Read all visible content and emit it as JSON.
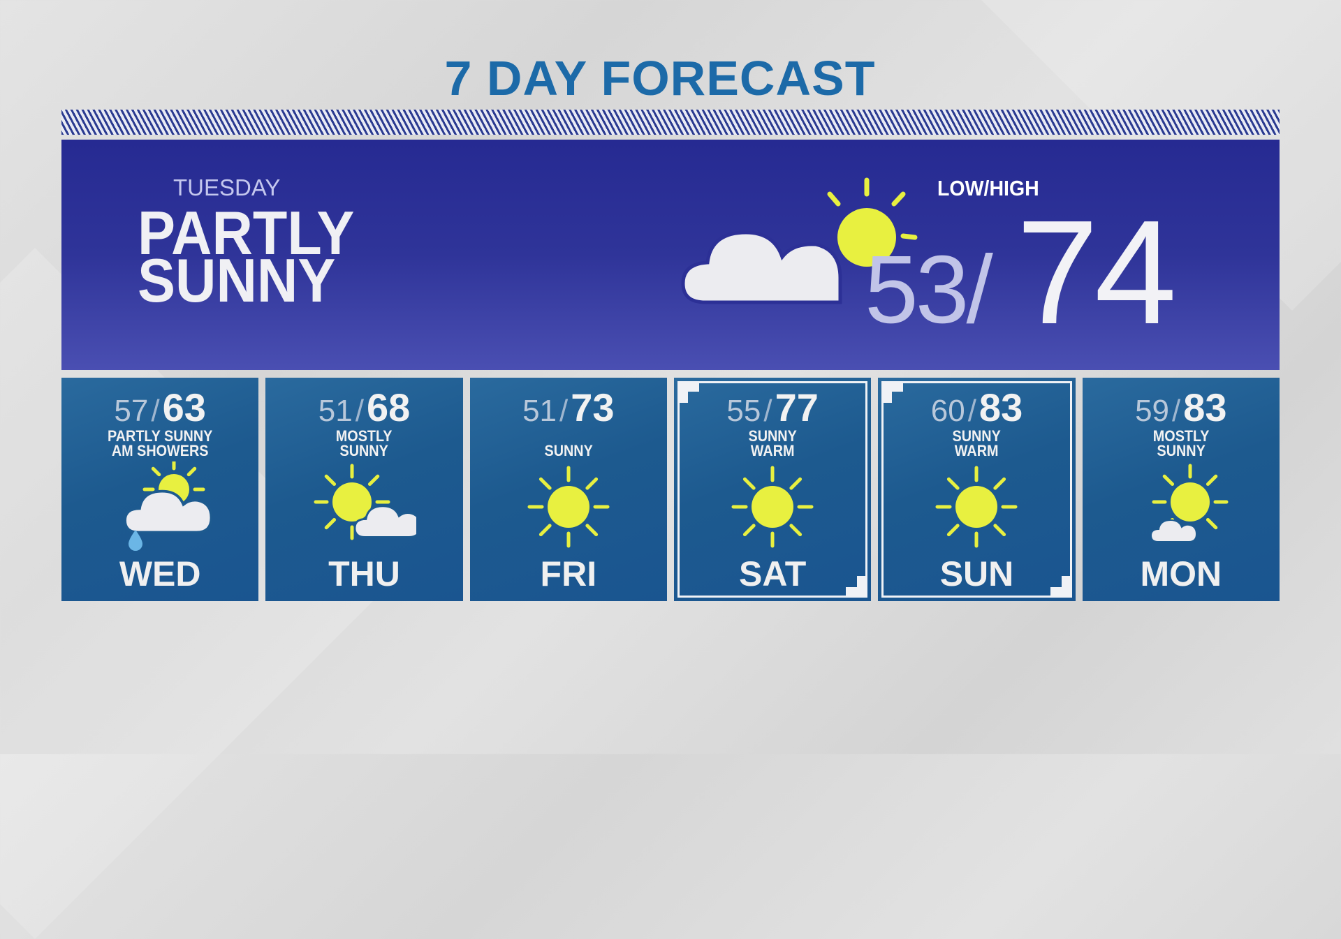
{
  "title": "7 DAY FORECAST",
  "colors": {
    "title": "#1c6aa8",
    "panel": "#262a92",
    "tile": "#1d5a8f",
    "sun": "#e8f040",
    "cloud": "#ececf0",
    "rain": "#6bb6e6"
  },
  "today": {
    "day": "TUESDAY",
    "condition_line1": "PARTLY",
    "condition_line2": "SUNNY",
    "icon": "partly-sunny-icon",
    "low_high_label": "LOW/HIGH",
    "low": "53/",
    "high": "74"
  },
  "days": [
    {
      "day": "WED",
      "low": "57",
      "high": "63",
      "desc1": "PARTLY SUNNY",
      "desc2": "AM SHOWERS",
      "icon": "partly-sunny-showers",
      "highlight": false
    },
    {
      "day": "THU",
      "low": "51",
      "high": "68",
      "desc1": "MOSTLY",
      "desc2": "SUNNY",
      "icon": "mostly-sunny",
      "highlight": false
    },
    {
      "day": "FRI",
      "low": "51",
      "high": "73",
      "desc1": "",
      "desc2": "SUNNY",
      "icon": "sunny",
      "highlight": false
    },
    {
      "day": "SAT",
      "low": "55",
      "high": "77",
      "desc1": "SUNNY",
      "desc2": "WARM",
      "icon": "sunny",
      "highlight": true
    },
    {
      "day": "SUN",
      "low": "60",
      "high": "83",
      "desc1": "SUNNY",
      "desc2": "WARM",
      "icon": "sunny",
      "highlight": true
    },
    {
      "day": "MON",
      "low": "59",
      "high": "83",
      "desc1": "MOSTLY",
      "desc2": "SUNNY",
      "icon": "mostly-sunny-small-cloud",
      "highlight": false
    }
  ]
}
